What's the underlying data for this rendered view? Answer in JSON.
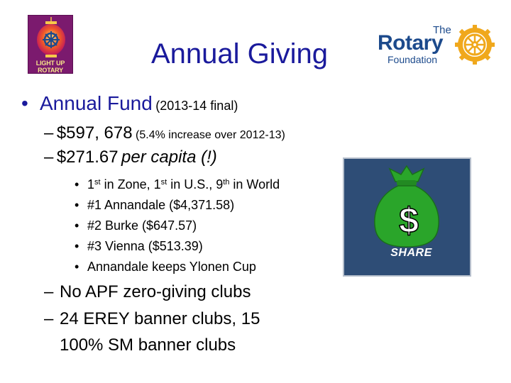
{
  "slide": {
    "title": "Annual Giving",
    "left_logo": {
      "line1": "LIGHT UP",
      "line2": "ROTARY",
      "icon": "light-up-rotary-lantern-logo"
    },
    "right_logo": {
      "the": "The",
      "name": "Rotary",
      "sub": "Foundation",
      "icon": "rotary-wheel"
    },
    "bullet1": {
      "bullet": "•",
      "main": "Annual Fund",
      "note": "(2013-14 final)"
    },
    "sub1": [
      {
        "dash": "–",
        "main": "$597, 678",
        "note": "(5.4% increase over 2012-13)"
      },
      {
        "dash": "–",
        "amount": "$271.67",
        "rest": "per capita (!)"
      }
    ],
    "third_level": [
      {
        "bullet": "•",
        "parts": [
          "1",
          "st",
          " in Zone, 1",
          "st",
          " in U.S., 9",
          "th",
          " in World"
        ]
      },
      {
        "bullet": "•",
        "text": "#1 Annandale ($4,371.58)"
      },
      {
        "bullet": "•",
        "text": "#2 Burke ($647.57)"
      },
      {
        "bullet": "•",
        "text": "#3 Vienna ($513.39)"
      },
      {
        "bullet": "•",
        "text": "Annandale keeps Ylonen Cup"
      }
    ],
    "sub2": [
      {
        "dash": "–",
        "text": "No APF zero-giving clubs"
      },
      {
        "dash": "–",
        "text": "24 EREY banner clubs, 15"
      },
      {
        "dash": "",
        "text": "100% SM banner clubs"
      }
    ],
    "share_image": {
      "label": "SHARE",
      "icon": "money-bag-icon",
      "symbol": "$",
      "colors": {
        "background": "#2e4d76",
        "bag": "#2aa52a"
      }
    }
  },
  "colors": {
    "title": "#1a1a9c",
    "bullet": "#1a1a9c",
    "rotary_blue": "#1c4a8c",
    "rotary_gold": "#f0a81c"
  }
}
